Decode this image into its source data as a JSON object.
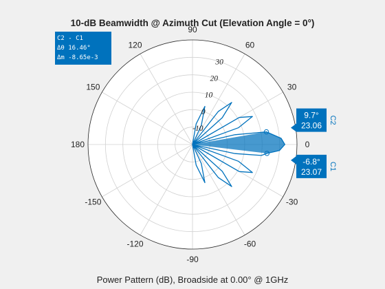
{
  "chart_data": {
    "type": "polar",
    "title": "10-dB Beamwidth @ Azimuth Cut (Elevation Angle = 0°)",
    "subtitle": "Power Pattern (dB), Broadside at 0.00° @ 1GHz",
    "angle_tick_labels": [
      "90",
      "60",
      "30",
      "0",
      "-30",
      "-60",
      "-90",
      "-120",
      "-150",
      "180",
      "150",
      "120"
    ],
    "angle_tick_values": [
      90,
      60,
      30,
      0,
      -30,
      -60,
      -90,
      -120,
      -150,
      180,
      150,
      120
    ],
    "magnitude_tick_labels": [
      "-10",
      "0",
      "10",
      "20",
      "30"
    ],
    "magnitude_tick_values": [
      -10,
      0,
      10,
      20,
      30
    ],
    "magnitude_range": [
      -20,
      40
    ],
    "grid": true,
    "series_color": "#0072bd",
    "beam_fill_color": "#0072bd",
    "beamwidth_span_deg": [
      -6.8,
      9.7
    ],
    "pattern": [
      {
        "angle": -90,
        "value": -20
      },
      {
        "angle": -80,
        "value": -8
      },
      {
        "angle": -72,
        "value": 3
      },
      {
        "angle": -65,
        "value": -8
      },
      {
        "angle": -58,
        "value": -20
      },
      {
        "angle": -52,
        "value": 4
      },
      {
        "angle": -47,
        "value": 13
      },
      {
        "angle": -42,
        "value": 3
      },
      {
        "angle": -38,
        "value": -20
      },
      {
        "angle": -30,
        "value": 11
      },
      {
        "angle": -25,
        "value": 18
      },
      {
        "angle": -20,
        "value": 8
      },
      {
        "angle": -16,
        "value": -20
      },
      {
        "angle": -12,
        "value": 5
      },
      {
        "angle": -9,
        "value": 20
      },
      {
        "angle": -6.8,
        "value": 23.07
      },
      {
        "angle": -4,
        "value": 30
      },
      {
        "angle": 0,
        "value": 33
      },
      {
        "angle": 4,
        "value": 31
      },
      {
        "angle": 9.7,
        "value": 23.06
      },
      {
        "angle": 13,
        "value": 5
      },
      {
        "angle": 16,
        "value": -20
      },
      {
        "angle": 20,
        "value": 8
      },
      {
        "angle": 25,
        "value": 18
      },
      {
        "angle": 30,
        "value": 11
      },
      {
        "angle": 38,
        "value": -20
      },
      {
        "angle": 42,
        "value": 3
      },
      {
        "angle": 47,
        "value": 13
      },
      {
        "angle": 52,
        "value": 4
      },
      {
        "angle": 58,
        "value": -20
      },
      {
        "angle": 65,
        "value": -8
      },
      {
        "angle": 72,
        "value": 3
      },
      {
        "angle": 80,
        "value": -8
      },
      {
        "angle": 90,
        "value": -20
      }
    ],
    "cursors": [
      {
        "name": "C2",
        "angle": 9.7,
        "value": 23.06,
        "angle_text": "9.7°",
        "value_text": "23.06"
      },
      {
        "name": "C1",
        "angle": -6.8,
        "value": 23.07,
        "angle_text": "-6.8°",
        "value_text": "23.07"
      }
    ],
    "delta_readout": {
      "line1": "C2 - C1",
      "line2": "Δθ 16.46°",
      "line3": "Δm -8.65e-3"
    }
  }
}
